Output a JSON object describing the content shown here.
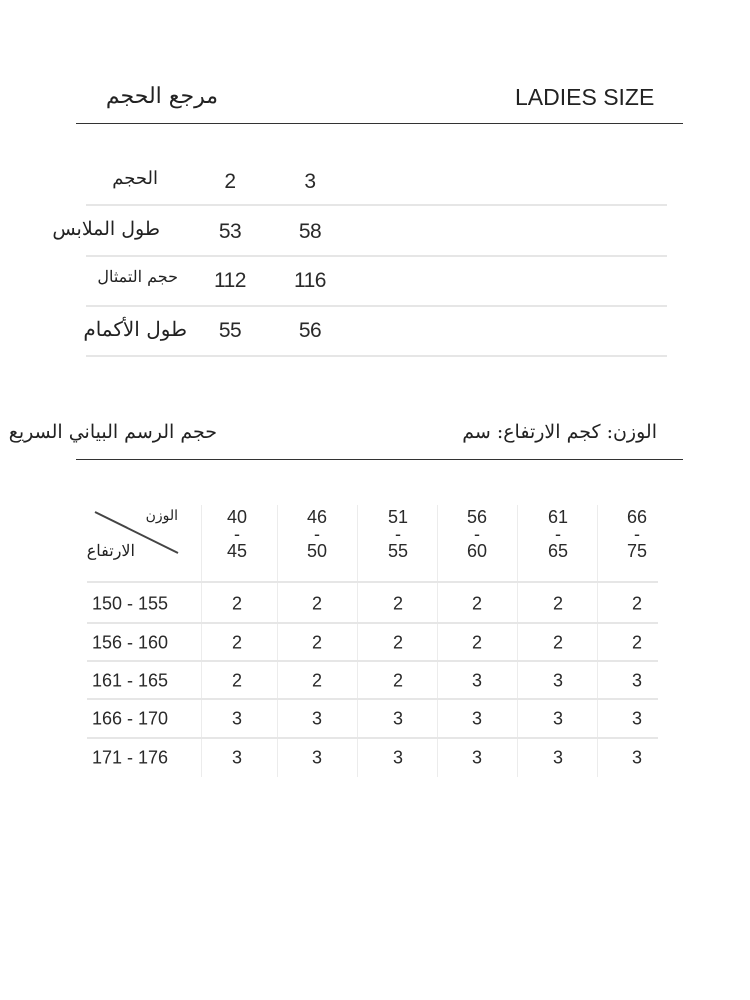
{
  "header": {
    "title_ar": "مرجع الحجم",
    "title_en": "LADIES SIZE"
  },
  "size_table": {
    "rows": [
      {
        "label": "الحجم",
        "values": [
          "2",
          "3"
        ]
      },
      {
        "label": "طول الملابس",
        "values": [
          "53",
          "58"
        ]
      },
      {
        "label": "حجم التمثال",
        "values": [
          "112",
          "116"
        ]
      },
      {
        "label": "طول الأكمام",
        "values": [
          "55",
          "56"
        ]
      }
    ]
  },
  "quick_chart": {
    "title": "حجم الرسم البياني السريع",
    "units": "الوزن: كجم الارتفاع: سم",
    "corner_weight": "الوزن",
    "corner_height": "الارتفاع",
    "weight_columns": [
      {
        "from": "40",
        "sep": "-",
        "to": "45"
      },
      {
        "from": "46",
        "sep": "-",
        "to": "50"
      },
      {
        "from": "51",
        "sep": "-",
        "to": "55"
      },
      {
        "from": "56",
        "sep": "-",
        "to": "60"
      },
      {
        "from": "61",
        "sep": "-",
        "to": "65"
      },
      {
        "from": "66",
        "sep": "-",
        "to": "75"
      }
    ],
    "rows": [
      {
        "height": "150 - 155",
        "sizes": [
          "2",
          "2",
          "2",
          "2",
          "2",
          "2"
        ]
      },
      {
        "height": "156 - 160",
        "sizes": [
          "2",
          "2",
          "2",
          "2",
          "2",
          "2"
        ]
      },
      {
        "height": "161 - 165",
        "sizes": [
          "2",
          "2",
          "2",
          "3",
          "3",
          "3"
        ]
      },
      {
        "height": "166 - 170",
        "sizes": [
          "3",
          "3",
          "3",
          "3",
          "3",
          "3"
        ]
      },
      {
        "height": "171 - 176",
        "sizes": [
          "3",
          "3",
          "3",
          "3",
          "3",
          "3"
        ]
      }
    ]
  }
}
